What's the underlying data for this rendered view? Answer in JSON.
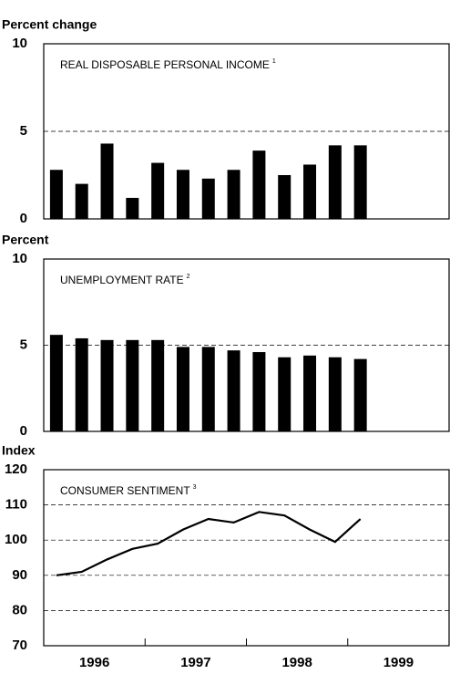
{
  "chart_data": [
    {
      "type": "bar",
      "ylabel": "Percent change",
      "annotation": "REAL DISPOSABLE PERSONAL INCOME",
      "footnote": "1",
      "x": [
        1996.125,
        1996.375,
        1996.625,
        1996.875,
        1997.125,
        1997.375,
        1997.625,
        1997.875,
        1998.125,
        1998.375,
        1998.625,
        1998.875,
        1999.125
      ],
      "values": [
        2.8,
        2.0,
        4.3,
        1.2,
        3.2,
        2.8,
        2.3,
        2.8,
        3.9,
        2.5,
        3.1,
        4.2,
        4.2
      ],
      "color": "#000000",
      "xlim": [
        1996,
        2000
      ],
      "ylim": [
        0,
        10
      ],
      "yticks": [
        0,
        5,
        10
      ],
      "grid": true
    },
    {
      "type": "bar",
      "ylabel": "Percent",
      "annotation": "UNEMPLOYMENT RATE",
      "footnote": "2",
      "x": [
        1996.125,
        1996.375,
        1996.625,
        1996.875,
        1997.125,
        1997.375,
        1997.625,
        1997.875,
        1998.125,
        1998.375,
        1998.625,
        1998.875,
        1999.125
      ],
      "values": [
        5.6,
        5.4,
        5.3,
        5.3,
        5.3,
        4.9,
        4.9,
        4.7,
        4.6,
        4.3,
        4.4,
        4.3,
        4.2
      ],
      "color": "#000000",
      "xlim": [
        1996,
        2000
      ],
      "ylim": [
        0,
        10
      ],
      "yticks": [
        0,
        5,
        10
      ],
      "grid": true
    },
    {
      "type": "line",
      "ylabel": "Index",
      "annotation": "CONSUMER SENTIMENT",
      "footnote": "3",
      "x": [
        1996.125,
        1996.375,
        1996.625,
        1996.875,
        1997.125,
        1997.375,
        1997.625,
        1997.875,
        1998.125,
        1998.375,
        1998.625,
        1998.875,
        1999.125
      ],
      "values": [
        90,
        91,
        94.5,
        97.5,
        99,
        103,
        106,
        105,
        108,
        107,
        103,
        99.5,
        106
      ],
      "color": "#000000",
      "xlim": [
        1996,
        2000
      ],
      "ylim": [
        70,
        120
      ],
      "yticks": [
        70,
        80,
        90,
        100,
        110,
        120
      ],
      "xticks": [
        {
          "value": 1996,
          "label": "1996"
        },
        {
          "value": 1997,
          "label": "1997"
        },
        {
          "value": 1998,
          "label": "1998"
        },
        {
          "value": 1999,
          "label": "1999"
        }
      ],
      "grid": true
    }
  ]
}
